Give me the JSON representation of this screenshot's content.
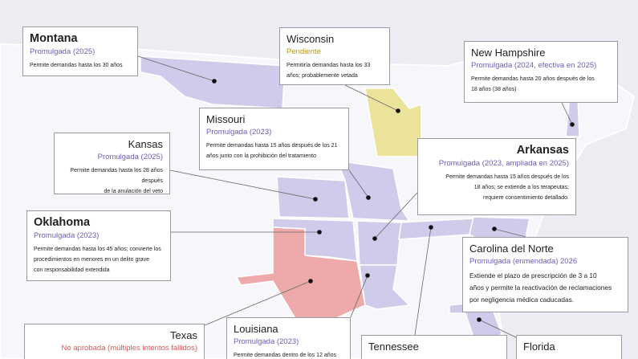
{
  "callouts": [
    {
      "title": "Montana",
      "status": "Promulgada (2025)",
      "description": [
        "Permite demandas hasta los 30 años"
      ]
    },
    {
      "title": "Wisconsin",
      "status": "Pendiente",
      "description": [
        "Permitiría demandas hasta los 33",
        "años; probablemente vetada"
      ]
    },
    {
      "title": "New Hampshire",
      "status": "Promulgada (2024, efectiva en 2025)",
      "description": [
        "Permite demandas hasta 20 años después de los",
        "18 años (38 años)"
      ]
    },
    {
      "title": "Missouri",
      "status": "Promulgada (2023)",
      "description": [
        "Permite demandas hasta 15 años después de los 21",
        "años junto con la prohibición del tratamiento"
      ]
    },
    {
      "title": "Kansas",
      "status": "Promulgada (2025)",
      "description": [
        "Permite demandas hasta los 28 años después",
        "de la anulación del veto"
      ]
    },
    {
      "title": "Arkansas",
      "status": "Promulgada (2023, ampliada en 2025)",
      "description": [
        "Permite demandas hasta 15 años después de los",
        "18 años; se extiende a los terapeutas;",
        "requiere consentimiento detallado."
      ]
    },
    {
      "title": "Oklahoma",
      "status": "Promulgada (2023)",
      "description": [
        "Permite demandas hasta los 45 años; convierte los",
        "procedimientos en menores en un delito grave",
        "con responsabilidad extendida"
      ]
    },
    {
      "title": "Carolina del Norte",
      "status": "Promulgada (enmendada) 2026",
      "description": [
        "Extiende el plazo de prescripción de 3 a 10",
        "años y permite la reactivación de reclamaciones",
        "por negligencia médica caducadas."
      ]
    },
    {
      "title": "Texas",
      "status": "No aprobada (múltiples intentos fallidos)",
      "description": []
    },
    {
      "title": "Louisiana",
      "status": "Promulgada (2023)",
      "description": [
        "Permite demandas dentro de los 12 años"
      ]
    },
    {
      "title": "Tennessee",
      "status": "",
      "description": []
    },
    {
      "title": "Florida",
      "status": "",
      "description": []
    }
  ]
}
